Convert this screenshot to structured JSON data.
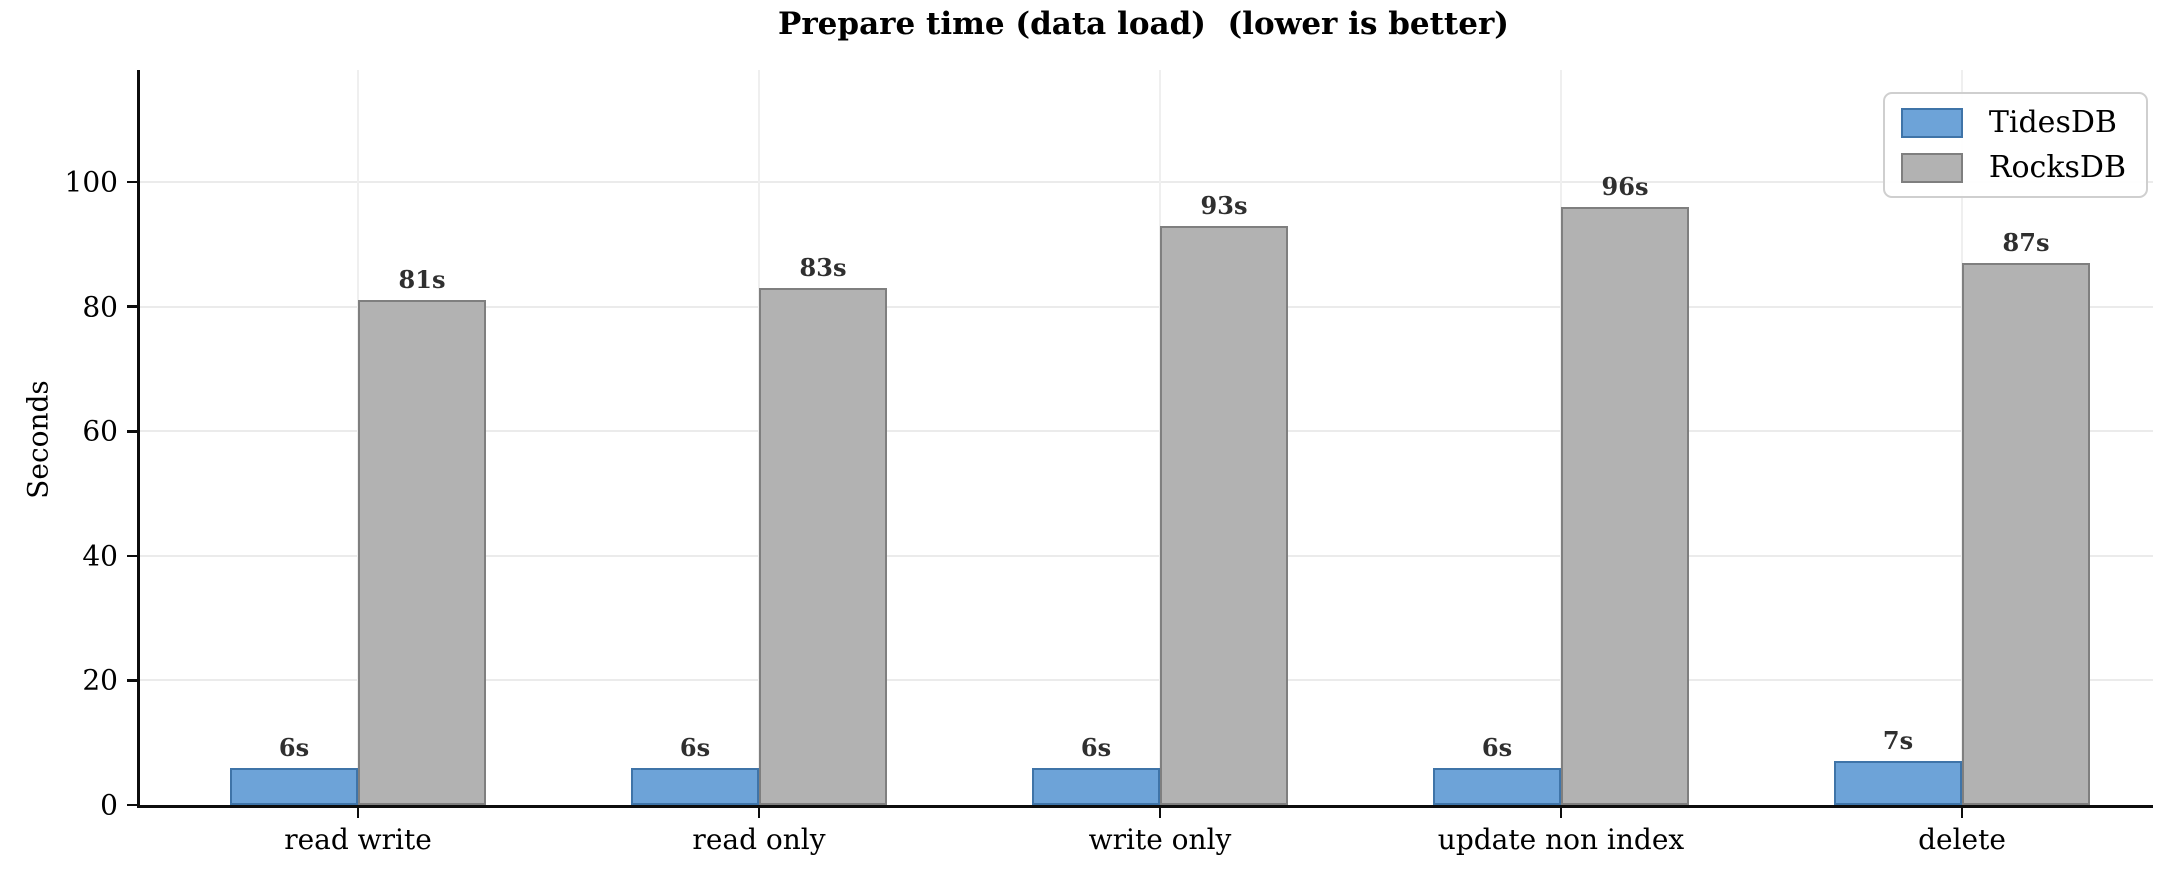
{
  "chart_data": {
    "type": "bar",
    "title": "Prepare time (data load)  (lower is better)",
    "xlabel": "",
    "ylabel": "Seconds",
    "categories": [
      "read write",
      "read only",
      "write only",
      "update non index",
      "delete"
    ],
    "series": [
      {
        "name": "TidesDB",
        "values": [
          6,
          6,
          6,
          6,
          7
        ],
        "labels": [
          "6s",
          "6s",
          "6s",
          "6s",
          "7s"
        ],
        "fill_color": "#6da3d8",
        "edge_color": "#3f74a8"
      },
      {
        "name": "RocksDB",
        "values": [
          81,
          83,
          93,
          96,
          87
        ],
        "labels": [
          "81s",
          "83s",
          "93s",
          "96s",
          "87s"
        ],
        "fill_color": "#b2b2b2",
        "edge_color": "#7f7f7f"
      }
    ],
    "ylim": [
      0,
      118
    ],
    "yticks": [
      0,
      20,
      40,
      60,
      80,
      100
    ],
    "grid": true,
    "legend_position": "upper right",
    "colors": {
      "spine": "#0d0d0d",
      "grid": "#ebebeb",
      "bar_label_text": "#2f2f2f",
      "legend_border": "#cfcfcf",
      "background": "#ffffff"
    }
  }
}
